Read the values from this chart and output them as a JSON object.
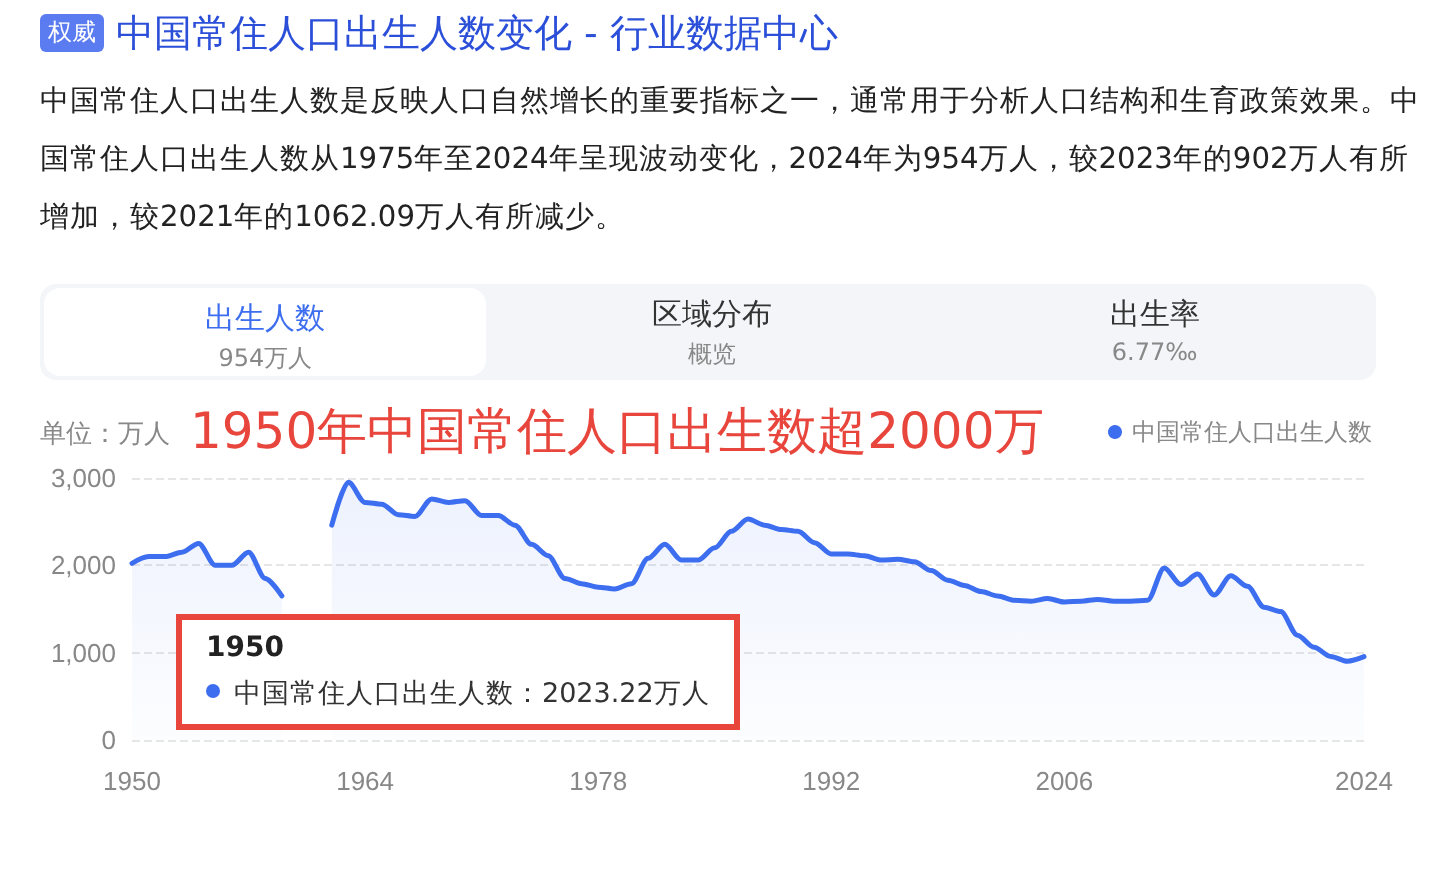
{
  "chart_data": {
    "type": "area",
    "title": "中国常住人口出生人数变化 - 行业数据中心",
    "subtitle": "中国常住人口出生人数是反映人口自然增长的重要指标之一，通常用于分析人口结构和生育政策效果。中国常住人口出生人数从1975年至2024年呈现波动变化，2024年为954万人，较2023年的902万人有所增加，较2021年的1062.09万人有所减少。",
    "ylabel": "单位：万人",
    "annotations": [
      "权威",
      "1950年中国常住人口出生数超2000万",
      "1950",
      "中国常住人口出生人数：2023.22万人",
      "出生人数",
      "954万人",
      "区域分布",
      "概览",
      "出生率",
      "6.77‰"
    ],
    "x": [
      1950,
      1951,
      1952,
      1953,
      1954,
      1955,
      1956,
      1957,
      1958,
      1959,
      1960,
      1961,
      1962,
      1963,
      1964,
      1965,
      1966,
      1967,
      1968,
      1969,
      1970,
      1971,
      1972,
      1973,
      1974,
      1975,
      1976,
      1977,
      1978,
      1979,
      1980,
      1981,
      1982,
      1983,
      1984,
      1985,
      1986,
      1987,
      1988,
      1989,
      1990,
      1991,
      1992,
      1993,
      1994,
      1995,
      1996,
      1997,
      1998,
      1999,
      2000,
      2001,
      2002,
      2003,
      2004,
      2005,
      2006,
      2007,
      2008,
      2009,
      2010,
      2011,
      2012,
      2013,
      2014,
      2015,
      2016,
      2017,
      2018,
      2019,
      2020,
      2021,
      2022,
      2023,
      2024
    ],
    "series": [
      {
        "name": "中国常住人口出生人数",
        "color": "#3d6ef0",
        "values": [
          2023.22,
          2100,
          2100,
          2150,
          2250,
          2000,
          2000,
          2150,
          1850,
          1650,
          null,
          null,
          2460,
          2950,
          2720,
          2700,
          2580,
          2560,
          2760,
          2720,
          2740,
          2570,
          2570,
          2460,
          2240,
          2110,
          1850,
          1790,
          1750,
          1730,
          1790,
          2080,
          2240,
          2060,
          2060,
          2200,
          2390,
          2530,
          2460,
          2410,
          2390,
          2260,
          2130,
          2130,
          2110,
          2060,
          2070,
          2040,
          1940,
          1830,
          1770,
          1700,
          1650,
          1600,
          1590,
          1620,
          1580,
          1590,
          1610,
          1590,
          1590,
          1600,
          1970,
          1780,
          1900,
          1660,
          1880,
          1760,
          1520,
          1470,
          1200,
          1062,
          956,
          902,
          954
        ]
      }
    ],
    "xlim": [
      1950,
      2024
    ],
    "xticks": [
      1950,
      1964,
      1978,
      1992,
      2006,
      2024
    ],
    "ylim": [
      0,
      3000
    ],
    "yticks": [
      0,
      {
        "value": 1000,
        "label": "1,000"
      },
      {
        "value": 2000,
        "label": "2,000"
      },
      {
        "value": 3000,
        "label": "3,000"
      }
    ],
    "grid": "y",
    "legend": "top right",
    "marker": "none",
    "line_style": "solid"
  }
}
